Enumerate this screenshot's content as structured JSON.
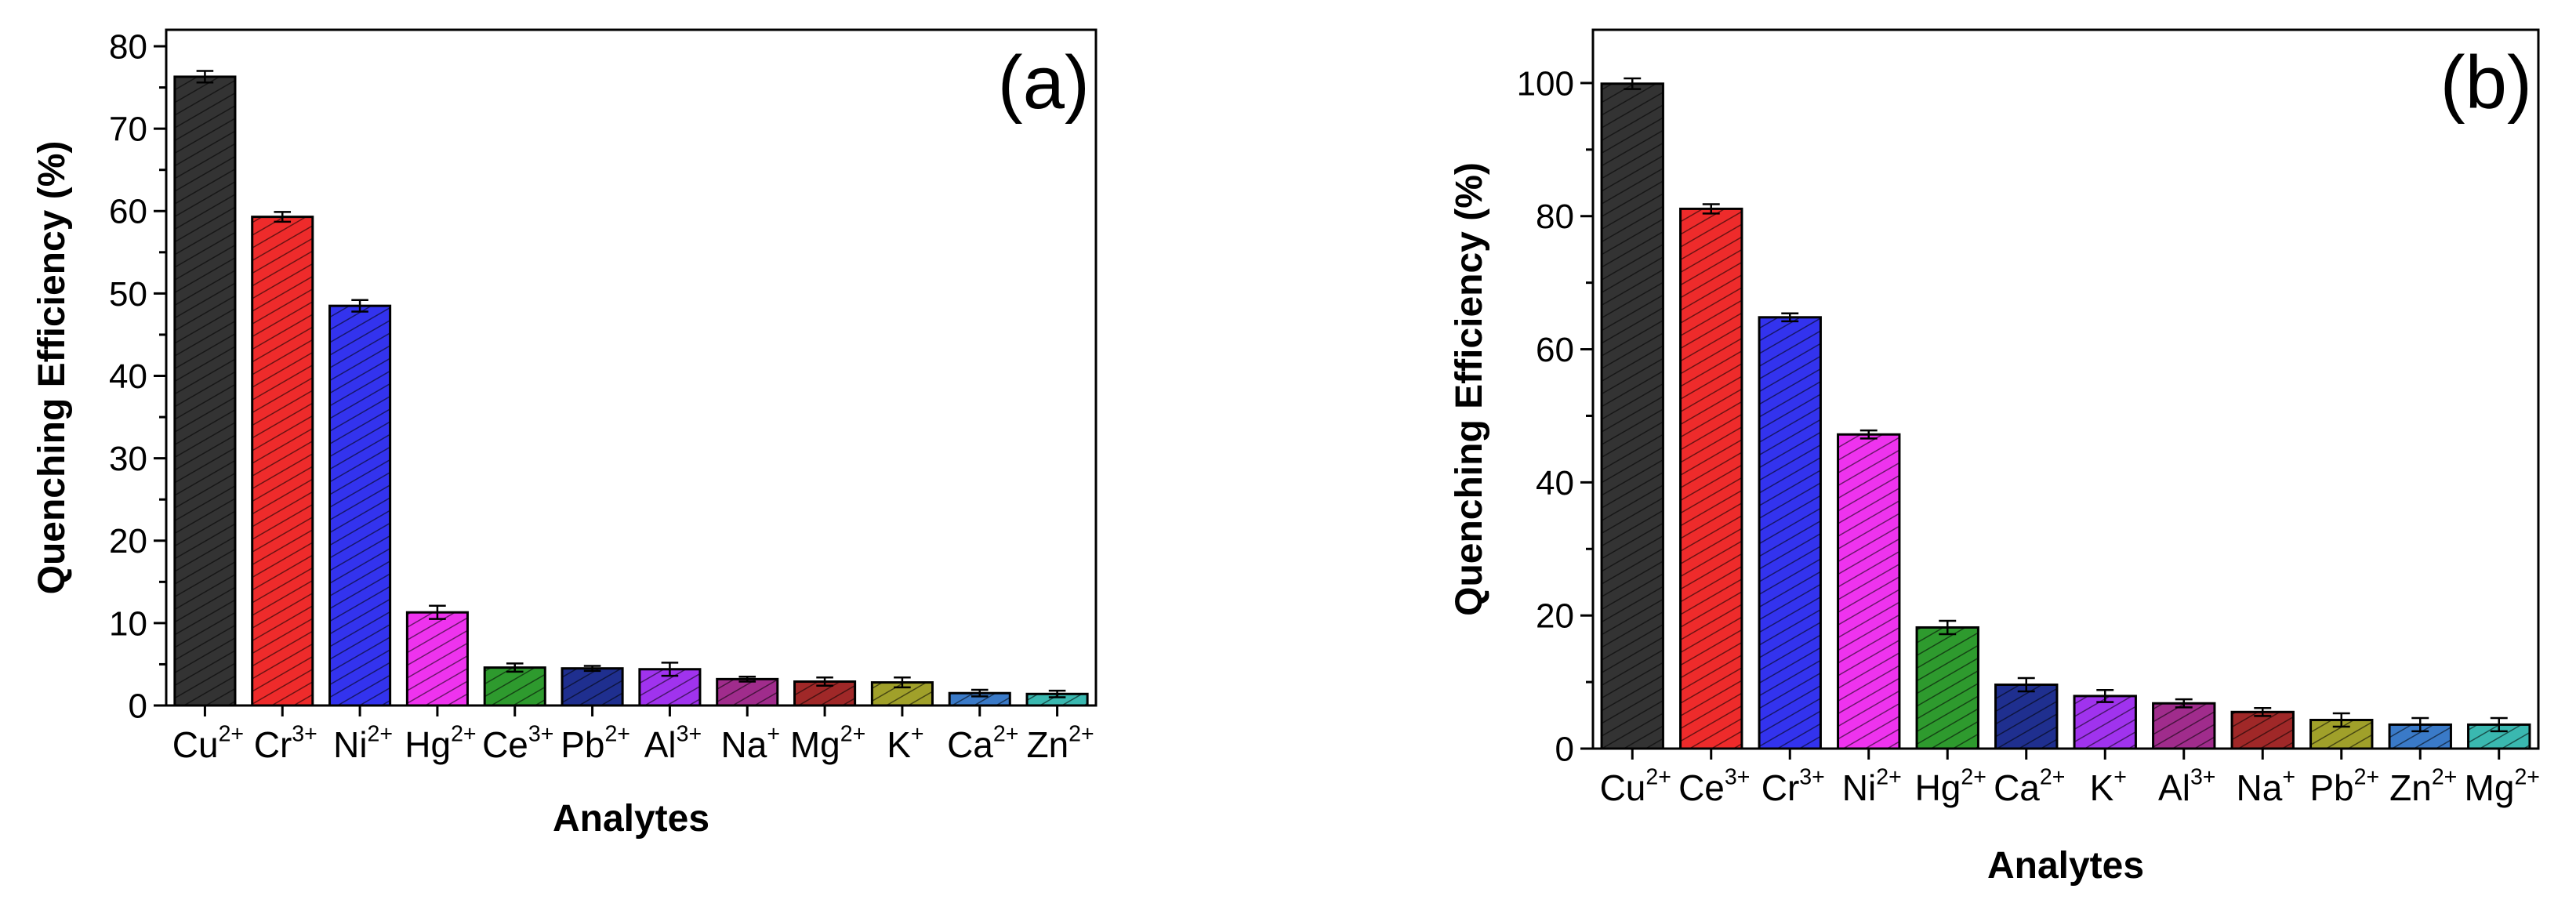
{
  "chart_data": [
    {
      "type": "bar",
      "panel_label": "(a)",
      "xlabel": "Analytes",
      "ylabel": "Quenching Efficiency (%)",
      "ylim": [
        0,
        82
      ],
      "yticks": [
        0,
        10,
        20,
        30,
        40,
        50,
        60,
        70,
        80
      ],
      "categories": [
        {
          "base": "Cu",
          "charge": "2+"
        },
        {
          "base": "Cr",
          "charge": "3+"
        },
        {
          "base": "Ni",
          "charge": "2+"
        },
        {
          "base": "Hg",
          "charge": "2+"
        },
        {
          "base": "Ce",
          "charge": "3+"
        },
        {
          "base": "Pb",
          "charge": "2+"
        },
        {
          "base": "Al",
          "charge": "3+"
        },
        {
          "base": "Na",
          "charge": "+"
        },
        {
          "base": "Mg",
          "charge": "2+"
        },
        {
          "base": "K",
          "charge": "+"
        },
        {
          "base": "Ca",
          "charge": "2+"
        },
        {
          "base": "Zn",
          "charge": "2+"
        }
      ],
      "values": [
        76.3,
        59.3,
        48.5,
        11.3,
        4.6,
        4.5,
        4.4,
        3.2,
        2.9,
        2.8,
        1.5,
        1.4
      ],
      "errors": [
        0.7,
        0.6,
        0.7,
        0.8,
        0.5,
        0.3,
        0.8,
        0.3,
        0.5,
        0.6,
        0.4,
        0.4
      ],
      "colors": [
        "#333333",
        "#ee2b2b",
        "#3333ee",
        "#ee33ee",
        "#2e9a2e",
        "#1f2f8f",
        "#a033ee",
        "#a02c8c",
        "#a02828",
        "#a0a02a",
        "#3a7ac8",
        "#3ab8b0"
      ]
    },
    {
      "type": "bar",
      "panel_label": "(b)",
      "xlabel": "Analytes",
      "ylabel": "Quenching Efficiency (%)",
      "ylim": [
        0,
        108
      ],
      "yticks": [
        0,
        20,
        40,
        60,
        80,
        100
      ],
      "categories": [
        {
          "base": "Cu",
          "charge": "2+"
        },
        {
          "base": "Ce",
          "charge": "3+"
        },
        {
          "base": "Cr",
          "charge": "3+"
        },
        {
          "base": "Ni",
          "charge": "2+"
        },
        {
          "base": "Hg",
          "charge": "2+"
        },
        {
          "base": "Ca",
          "charge": "2+"
        },
        {
          "base": "K",
          "charge": "+"
        },
        {
          "base": "Al",
          "charge": "3+"
        },
        {
          "base": "Na",
          "charge": "+"
        },
        {
          "base": "Pb",
          "charge": "2+"
        },
        {
          "base": "Zn",
          "charge": "2+"
        },
        {
          "base": "Mg",
          "charge": "2+"
        }
      ],
      "values": [
        99.9,
        81.1,
        64.8,
        47.2,
        18.2,
        9.6,
        7.9,
        6.8,
        5.5,
        4.3,
        3.6,
        3.6
      ],
      "errors": [
        0.8,
        0.7,
        0.6,
        0.6,
        1.0,
        1.0,
        0.9,
        0.6,
        0.6,
        1.0,
        1.0,
        1.0
      ],
      "colors": [
        "#333333",
        "#ee2b2b",
        "#3333ee",
        "#ee33ee",
        "#2e9a2e",
        "#1f2f8f",
        "#a033ee",
        "#a02c8c",
        "#a02828",
        "#a0a02a",
        "#3a7ac8",
        "#3ab8b0"
      ]
    }
  ]
}
